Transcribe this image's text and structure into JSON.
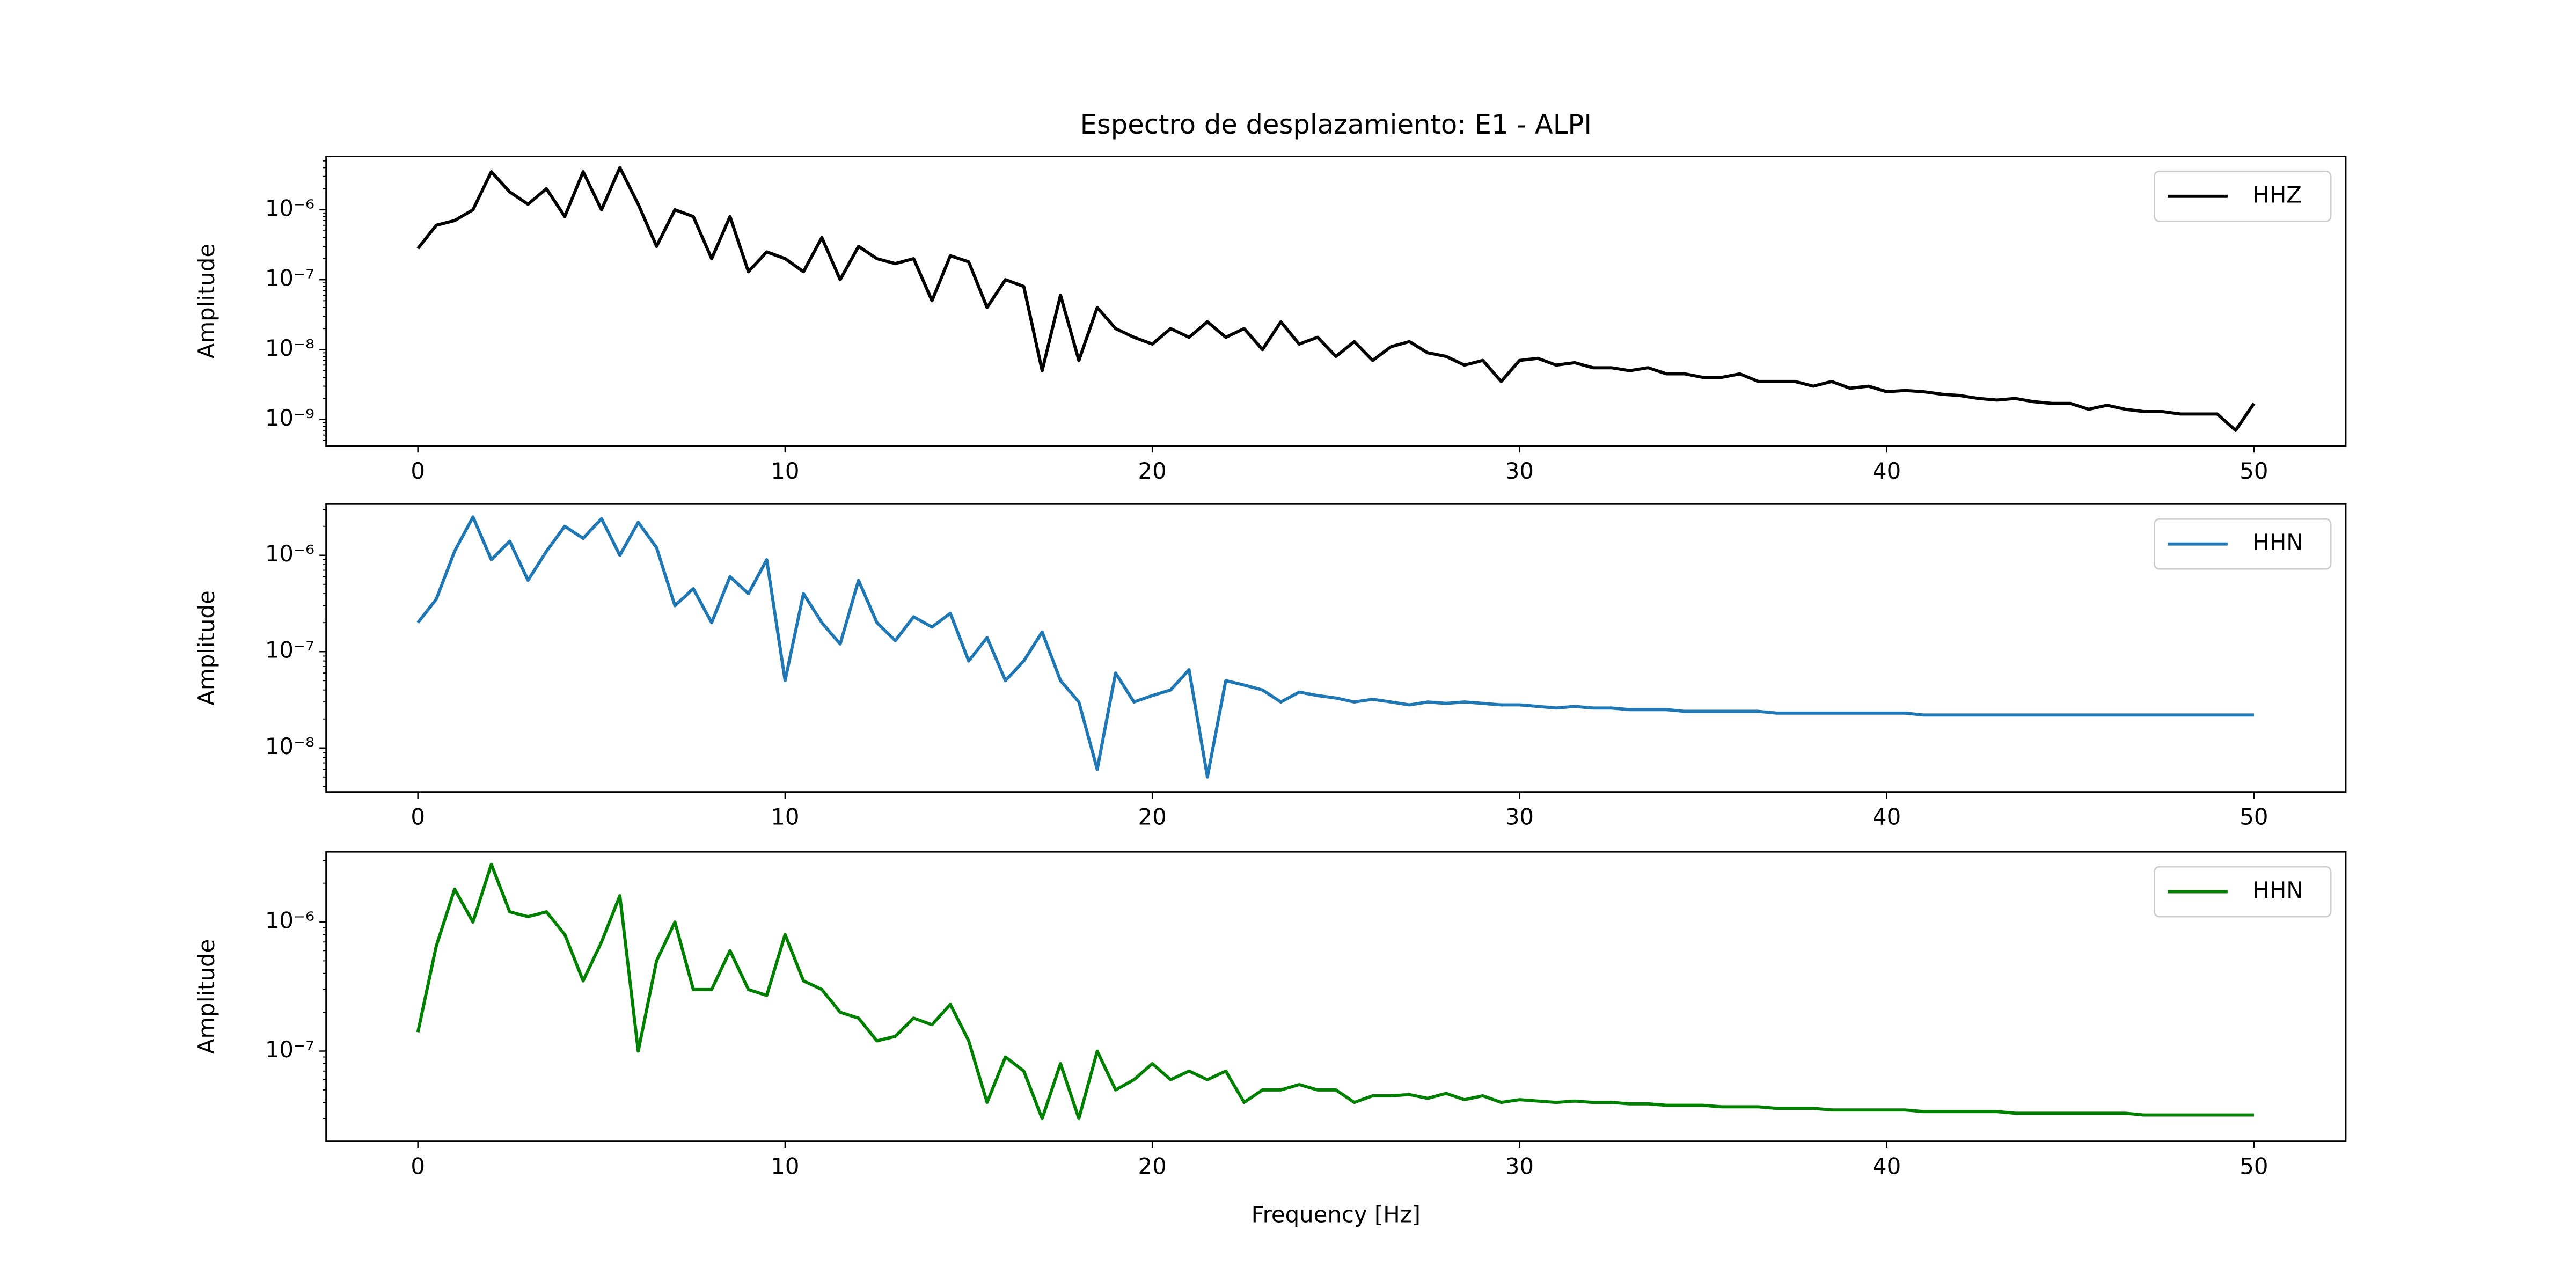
{
  "chart_data": [
    {
      "type": "line",
      "title": "Espectro de desplazamiento: E1 - ALPI",
      "ylabel": "Amplitude",
      "yscale": "log",
      "legend": "upper right",
      "x": [
        0,
        0.5,
        1,
        1.5,
        2,
        2.5,
        3,
        3.5,
        4,
        4.5,
        5,
        5.5,
        6,
        6.5,
        7,
        7.5,
        8,
        8.5,
        9,
        9.5,
        10,
        10.5,
        11,
        11.5,
        12,
        12.5,
        13,
        13.5,
        14,
        14.5,
        15,
        15.5,
        16,
        16.5,
        17,
        17.5,
        18,
        18.5,
        19,
        19.5,
        20,
        20.5,
        21,
        21.5,
        22,
        22.5,
        23,
        23.5,
        24,
        24.5,
        25,
        25.5,
        26,
        26.5,
        27,
        27.5,
        28,
        28.5,
        29,
        29.5,
        30,
        30.5,
        31,
        31.5,
        32,
        32.5,
        33,
        33.5,
        34,
        34.5,
        35,
        35.5,
        36,
        36.5,
        37,
        37.5,
        38,
        38.5,
        39,
        39.5,
        40,
        40.5,
        41,
        41.5,
        42,
        42.5,
        43,
        43.5,
        44,
        44.5,
        45,
        45.5,
        46,
        46.5,
        47,
        47.5,
        48,
        48.5,
        49,
        49.5,
        50
      ],
      "series": [
        {
          "name": "HHZ",
          "color": "#000000",
          "values": [
            2.8e-07,
            6e-07,
            7e-07,
            1e-06,
            3.5e-06,
            1.8e-06,
            1.2e-06,
            2e-06,
            8e-07,
            3.5e-06,
            1e-06,
            4e-06,
            1.2e-06,
            3e-07,
            1e-06,
            8e-07,
            2e-07,
            8e-07,
            1.3e-07,
            2.5e-07,
            2e-07,
            1.3e-07,
            4e-07,
            1e-07,
            3e-07,
            2e-07,
            1.7e-07,
            2e-07,
            5e-08,
            2.2e-07,
            1.8e-07,
            4e-08,
            1e-07,
            8e-08,
            5e-09,
            6e-08,
            7e-09,
            4e-08,
            2e-08,
            1.5e-08,
            1.2e-08,
            2e-08,
            1.5e-08,
            2.5e-08,
            1.5e-08,
            2e-08,
            1e-08,
            2.5e-08,
            1.2e-08,
            1.5e-08,
            8e-09,
            1.3e-08,
            7e-09,
            1.1e-08,
            1.3e-08,
            9e-09,
            8e-09,
            6e-09,
            7e-09,
            3.5e-09,
            7e-09,
            7.5e-09,
            6e-09,
            6.5e-09,
            5.5e-09,
            5.5e-09,
            5e-09,
            5.5e-09,
            4.5e-09,
            4.5e-09,
            4e-09,
            4e-09,
            4.5e-09,
            3.5e-09,
            3.5e-09,
            3.5e-09,
            3e-09,
            3.5e-09,
            2.8e-09,
            3e-09,
            2.5e-09,
            2.6e-09,
            2.5e-09,
            2.3e-09,
            2.2e-09,
            2e-09,
            1.9e-09,
            2e-09,
            1.8e-09,
            1.7e-09,
            1.7e-09,
            1.4e-09,
            1.6e-09,
            1.4e-09,
            1.3e-09,
            1.3e-09,
            1.2e-09,
            1.2e-09,
            1.2e-09,
            7e-10,
            1.7e-09
          ]
        }
      ],
      "xlim": [
        -2.5,
        52.5
      ],
      "xticks": [
        0,
        10,
        20,
        30,
        40,
        50
      ],
      "ylim": [
        4.2e-10,
        5.8e-06
      ],
      "yticks": [
        {
          "value": 1e-09,
          "label": "10⁻⁹"
        },
        {
          "value": 1e-08,
          "label": "10⁻⁸"
        },
        {
          "value": 1e-07,
          "label": "10⁻⁷"
        },
        {
          "value": 1e-06,
          "label": "10⁻⁶"
        }
      ]
    },
    {
      "type": "line",
      "ylabel": "Amplitude",
      "yscale": "log",
      "legend": "upper right",
      "x": [
        0,
        0.5,
        1,
        1.5,
        2,
        2.5,
        3,
        3.5,
        4,
        4.5,
        5,
        5.5,
        6,
        6.5,
        7,
        7.5,
        8,
        8.5,
        9,
        9.5,
        10,
        10.5,
        11,
        11.5,
        12,
        12.5,
        13,
        13.5,
        14,
        14.5,
        15,
        15.5,
        16,
        16.5,
        17,
        17.5,
        18,
        18.5,
        19,
        19.5,
        20,
        20.5,
        21,
        21.5,
        22,
        22.5,
        23,
        23.5,
        24,
        24.5,
        25,
        25.5,
        26,
        26.5,
        27,
        27.5,
        28,
        28.5,
        29,
        29.5,
        30,
        30.5,
        31,
        31.5,
        32,
        32.5,
        33,
        33.5,
        34,
        34.5,
        35,
        35.5,
        36,
        36.5,
        37,
        37.5,
        38,
        38.5,
        39,
        39.5,
        40,
        40.5,
        41,
        41.5,
        42,
        42.5,
        43,
        43.5,
        44,
        44.5,
        45,
        45.5,
        46,
        46.5,
        47,
        47.5,
        48,
        48.5,
        49,
        49.5,
        50
      ],
      "series": [
        {
          "name": "HHN",
          "color": "#1f77b4",
          "values": [
            2e-07,
            3.5e-07,
            1.1e-06,
            2.5e-06,
            9e-07,
            1.4e-06,
            5.5e-07,
            1.1e-06,
            2e-06,
            1.5e-06,
            2.4e-06,
            1e-06,
            2.2e-06,
            1.2e-06,
            3e-07,
            4.5e-07,
            2e-07,
            6e-07,
            4e-07,
            9e-07,
            5e-08,
            4e-07,
            2e-07,
            1.2e-07,
            5.5e-07,
            2e-07,
            1.3e-07,
            2.3e-07,
            1.8e-07,
            2.5e-07,
            8e-08,
            1.4e-07,
            5e-08,
            8e-08,
            1.6e-07,
            5e-08,
            3e-08,
            6e-09,
            6e-08,
            3e-08,
            3.5e-08,
            4e-08,
            6.5e-08,
            5e-09,
            5e-08,
            4.5e-08,
            4e-08,
            3e-08,
            3.8e-08,
            3.5e-08,
            3.3e-08,
            3e-08,
            3.2e-08,
            3e-08,
            2.8e-08,
            3e-08,
            2.9e-08,
            3e-08,
            2.9e-08,
            2.8e-08,
            2.8e-08,
            2.7e-08,
            2.6e-08,
            2.7e-08,
            2.6e-08,
            2.6e-08,
            2.5e-08,
            2.5e-08,
            2.5e-08,
            2.4e-08,
            2.4e-08,
            2.4e-08,
            2.4e-08,
            2.4e-08,
            2.3e-08,
            2.3e-08,
            2.3e-08,
            2.3e-08,
            2.3e-08,
            2.3e-08,
            2.3e-08,
            2.3e-08,
            2.2e-08,
            2.2e-08,
            2.2e-08,
            2.2e-08,
            2.2e-08,
            2.2e-08,
            2.2e-08,
            2.2e-08,
            2.2e-08,
            2.2e-08,
            2.2e-08,
            2.2e-08,
            2.2e-08,
            2.2e-08,
            2.2e-08,
            2.2e-08,
            2.2e-08,
            2.2e-08,
            2.2e-08
          ]
        }
      ],
      "xlim": [
        -2.5,
        52.5
      ],
      "xticks": [
        0,
        10,
        20,
        30,
        40,
        50
      ],
      "ylim": [
        3.5e-09,
        3.4e-06
      ],
      "yticks": [
        {
          "value": 1e-08,
          "label": "10⁻⁸"
        },
        {
          "value": 1e-07,
          "label": "10⁻⁷"
        },
        {
          "value": 1e-06,
          "label": "10⁻⁶"
        }
      ]
    },
    {
      "type": "line",
      "ylabel": "Amplitude",
      "xlabel": "Frequency [Hz]",
      "yscale": "log",
      "legend": "upper right",
      "x": [
        0,
        0.5,
        1,
        1.5,
        2,
        2.5,
        3,
        3.5,
        4,
        4.5,
        5,
        5.5,
        6,
        6.5,
        7,
        7.5,
        8,
        8.5,
        9,
        9.5,
        10,
        10.5,
        11,
        11.5,
        12,
        12.5,
        13,
        13.5,
        14,
        14.5,
        15,
        15.5,
        16,
        16.5,
        17,
        17.5,
        18,
        18.5,
        19,
        19.5,
        20,
        20.5,
        21,
        21.5,
        22,
        22.5,
        23,
        23.5,
        24,
        24.5,
        25,
        25.5,
        26,
        26.5,
        27,
        27.5,
        28,
        28.5,
        29,
        29.5,
        30,
        30.5,
        31,
        31.5,
        32,
        32.5,
        33,
        33.5,
        34,
        34.5,
        35,
        35.5,
        36,
        36.5,
        37,
        37.5,
        38,
        38.5,
        39,
        39.5,
        40,
        40.5,
        41,
        41.5,
        42,
        42.5,
        43,
        43.5,
        44,
        44.5,
        45,
        45.5,
        46,
        46.5,
        47,
        47.5,
        48,
        48.5,
        49,
        49.5,
        50
      ],
      "series": [
        {
          "name": "HHN",
          "color": "#008000",
          "values": [
            1.4e-07,
            6.5e-07,
            1.8e-06,
            1e-06,
            2.8e-06,
            1.2e-06,
            1.1e-06,
            1.2e-06,
            8e-07,
            3.5e-07,
            7e-07,
            1.6e-06,
            1e-07,
            5e-07,
            1e-06,
            3e-07,
            3e-07,
            6e-07,
            3e-07,
            2.7e-07,
            8e-07,
            3.5e-07,
            3e-07,
            2e-07,
            1.8e-07,
            1.2e-07,
            1.3e-07,
            1.8e-07,
            1.6e-07,
            2.3e-07,
            1.2e-07,
            4e-08,
            9e-08,
            7e-08,
            3e-08,
            8e-08,
            3e-08,
            1e-07,
            5e-08,
            6e-08,
            8e-08,
            6e-08,
            7e-08,
            6e-08,
            7e-08,
            4e-08,
            5e-08,
            5e-08,
            5.5e-08,
            5e-08,
            5e-08,
            4e-08,
            4.5e-08,
            4.5e-08,
            4.6e-08,
            4.3e-08,
            4.7e-08,
            4.2e-08,
            4.5e-08,
            4e-08,
            4.2e-08,
            4.1e-08,
            4e-08,
            4.1e-08,
            4e-08,
            4e-08,
            3.9e-08,
            3.9e-08,
            3.8e-08,
            3.8e-08,
            3.8e-08,
            3.7e-08,
            3.7e-08,
            3.7e-08,
            3.6e-08,
            3.6e-08,
            3.6e-08,
            3.5e-08,
            3.5e-08,
            3.5e-08,
            3.5e-08,
            3.5e-08,
            3.4e-08,
            3.4e-08,
            3.4e-08,
            3.4e-08,
            3.4e-08,
            3.3e-08,
            3.3e-08,
            3.3e-08,
            3.3e-08,
            3.3e-08,
            3.3e-08,
            3.3e-08,
            3.2e-08,
            3.2e-08,
            3.2e-08,
            3.2e-08,
            3.2e-08,
            3.2e-08,
            3.2e-08
          ]
        }
      ],
      "xlim": [
        -2.5,
        52.5
      ],
      "xticks": [
        0,
        10,
        20,
        30,
        40,
        50
      ],
      "ylim": [
        2e-08,
        3.5e-06
      ],
      "yticks": [
        {
          "value": 1e-07,
          "label": "10⁻⁷"
        },
        {
          "value": 1e-06,
          "label": "10⁻⁶"
        }
      ]
    }
  ]
}
